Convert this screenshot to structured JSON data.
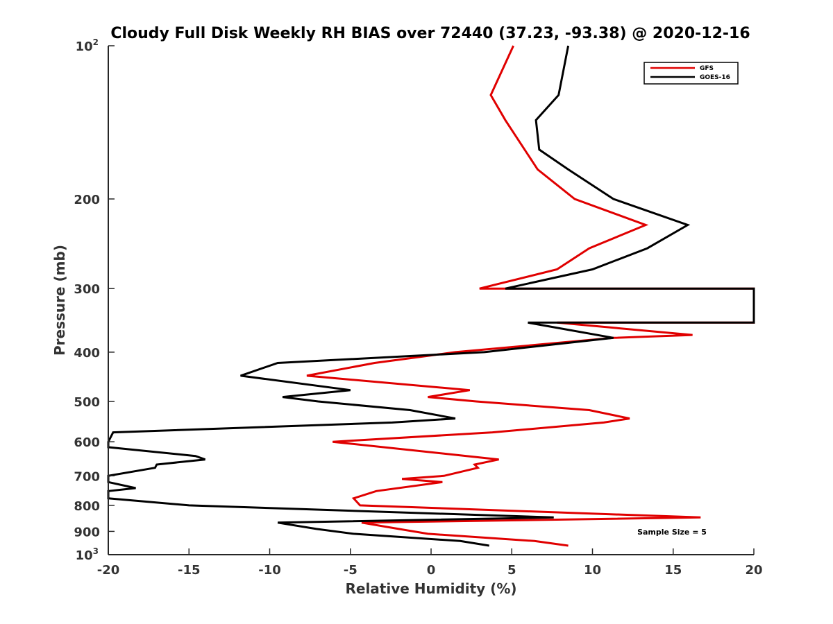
{
  "chart_data": {
    "type": "line",
    "title": "Cloudy Full Disk Weekly RH BIAS over 72440 (37.23, -93.38) @ 2020-12-16",
    "xlabel": "Relative Humidity (%)",
    "ylabel": "Pressure (mb)",
    "xlim": [
      -20,
      20
    ],
    "ylim": [
      100,
      1000
    ],
    "y_scale": "log",
    "y_reversed": true,
    "grid": false,
    "legend_position": "top-right",
    "x_ticks": [
      "-20",
      "-15",
      "-10",
      "-5",
      "0",
      "5",
      "10",
      "15",
      "20"
    ],
    "y_ticks": [
      {
        "base": "10",
        "exp": "2"
      },
      {
        "base": "200",
        "exp": ""
      },
      {
        "base": "300",
        "exp": ""
      },
      {
        "base": "400",
        "exp": ""
      },
      {
        "base": "500",
        "exp": ""
      },
      {
        "base": "600",
        "exp": ""
      },
      {
        "base": "700",
        "exp": ""
      },
      {
        "base": "800",
        "exp": ""
      },
      {
        "base": "900",
        "exp": ""
      },
      {
        "base": "10",
        "exp": "3"
      }
    ],
    "annotation": "Sample Size = 5",
    "series": [
      {
        "name": "GFS",
        "color": "#e00000",
        "points": [
          [
            5.1,
            100
          ],
          [
            3.7,
            125
          ],
          [
            4.6,
            140
          ],
          [
            6.6,
            175
          ],
          [
            8.9,
            200
          ],
          [
            13.3,
            225
          ],
          [
            9.8,
            250
          ],
          [
            7.8,
            275
          ],
          [
            3.0,
            300
          ],
          [
            20,
            300
          ],
          [
            20,
            350
          ],
          [
            7.8,
            350
          ],
          [
            16.2,
            370
          ],
          [
            11.3,
            375
          ],
          [
            1.5,
            400
          ],
          [
            -3.5,
            420
          ],
          [
            -7.7,
            445
          ],
          [
            2.4,
            475
          ],
          [
            -0.2,
            490
          ],
          [
            2.8,
            500
          ],
          [
            9.8,
            520
          ],
          [
            12.3,
            540
          ],
          [
            10.7,
            550
          ],
          [
            3.8,
            575
          ],
          [
            -6.1,
            600
          ],
          [
            2.2,
            640
          ],
          [
            4.2,
            650
          ],
          [
            2.7,
            665
          ],
          [
            2.9,
            675
          ],
          [
            0.8,
            700
          ],
          [
            -1.8,
            710
          ],
          [
            0.7,
            720
          ],
          [
            -3.4,
            750
          ],
          [
            -4.8,
            775
          ],
          [
            -4.4,
            800
          ],
          [
            16.7,
            845
          ],
          [
            -4.3,
            865
          ],
          [
            -2.0,
            890
          ],
          [
            -0.2,
            910
          ],
          [
            6.4,
            940
          ],
          [
            8.5,
            960
          ]
        ]
      },
      {
        "name": "GOES-16",
        "color": "#000000",
        "points": [
          [
            8.5,
            100
          ],
          [
            7.9,
            125
          ],
          [
            6.5,
            140
          ],
          [
            6.7,
            160
          ],
          [
            8.5,
            175
          ],
          [
            11.3,
            200
          ],
          [
            15.9,
            225
          ],
          [
            13.4,
            250
          ],
          [
            10.0,
            275
          ],
          [
            4.6,
            300
          ],
          [
            20,
            300
          ],
          [
            20,
            350
          ],
          [
            6.0,
            350
          ],
          [
            11.3,
            375
          ],
          [
            3.3,
            400
          ],
          [
            -9.5,
            420
          ],
          [
            -11.8,
            445
          ],
          [
            -5.0,
            475
          ],
          [
            -9.2,
            490
          ],
          [
            -7.0,
            500
          ],
          [
            -1.3,
            520
          ],
          [
            1.5,
            540
          ],
          [
            -2.4,
            550
          ],
          [
            -19.7,
            575
          ],
          [
            -20,
            600
          ],
          [
            -20,
            615
          ],
          [
            -14.6,
            640
          ],
          [
            -14.0,
            650
          ],
          [
            -17.0,
            665
          ],
          [
            -17.1,
            675
          ],
          [
            -20,
            700
          ],
          [
            -20,
            710
          ],
          [
            -20,
            720
          ],
          [
            -18.3,
            740
          ],
          [
            -20,
            750
          ],
          [
            -20,
            775
          ],
          [
            -15.0,
            800
          ],
          [
            7.6,
            845
          ],
          [
            -9.5,
            865
          ],
          [
            -7.1,
            890
          ],
          [
            -4.8,
            910
          ],
          [
            1.8,
            940
          ],
          [
            3.6,
            960
          ]
        ]
      }
    ]
  }
}
